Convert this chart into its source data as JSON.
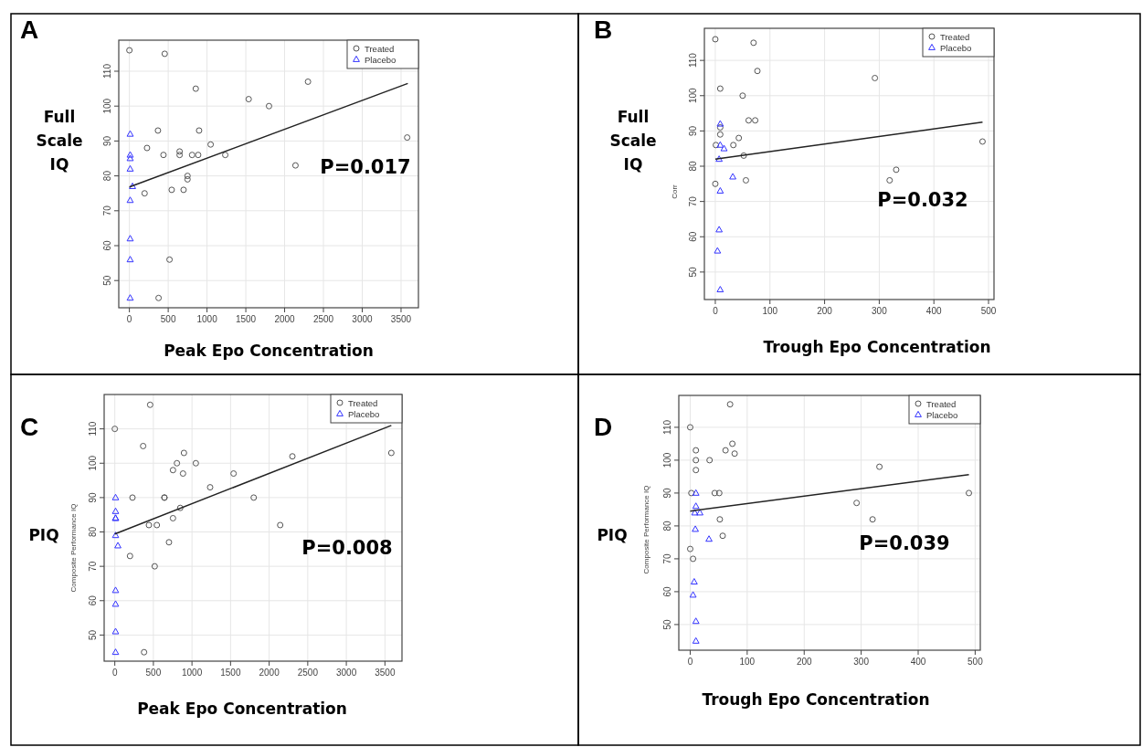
{
  "chart_data": [
    {
      "type": "scatter",
      "title": "A",
      "ylabel": "Full Scale IQ",
      "xlabel": "Peak Epo Concentration",
      "annotations": [
        "P=0.017"
      ],
      "xlim": [
        -137,
        3724
      ],
      "ylim": [
        42.2,
        118.9
      ],
      "xticks": [
        0,
        500,
        1000,
        1500,
        2000,
        2500,
        3000,
        3500
      ],
      "yticks": [
        50,
        60,
        70,
        80,
        90,
        100,
        110
      ],
      "grid": true,
      "legend": "top right",
      "series": [
        {
          "name": "Treated",
          "color": "#555555",
          "marker": "circle",
          "x": [
            0,
            455,
            368,
            227,
            439,
            647,
            647,
            808,
            886,
            855,
            898,
            1047,
            1235,
            749,
            749,
            196,
            545,
            698,
            517,
            376,
            1537,
            1799,
            2140,
            2301,
            3579
          ],
          "values": [
            116,
            115,
            93,
            88,
            86,
            87,
            86,
            86,
            86,
            105,
            93,
            89,
            86,
            80,
            79,
            75,
            76,
            76,
            56,
            45,
            102,
            100,
            83,
            107,
            91
          ]
        },
        {
          "name": "Placebo",
          "color": "#3333ff",
          "marker": "triangle",
          "x": [
            10,
            10,
            10,
            10,
            40,
            10,
            10,
            10,
            10
          ],
          "values": [
            92,
            86,
            85,
            82,
            77,
            73,
            62,
            56,
            45
          ]
        },
        {
          "type": "line",
          "color": "#222222",
          "x": [
            0,
            3587
          ],
          "values": [
            76.8,
            106.5
          ]
        }
      ]
    },
    {
      "type": "scatter",
      "title": "B",
      "ylabel": "Full Scale IQ",
      "xlabel": "Trough Epo Concentration",
      "annotations": [
        "P=0.032",
        "Corr"
      ],
      "xlim": [
        -20,
        510
      ],
      "ylim": [
        42.2,
        119.1
      ],
      "xticks": [
        0,
        100,
        200,
        300,
        400,
        500
      ],
      "yticks": [
        50,
        60,
        70,
        80,
        90,
        100,
        110
      ],
      "grid": true,
      "legend": "top right",
      "series": [
        {
          "name": "Treated",
          "color": "#555555",
          "marker": "circle",
          "x": [
            0,
            70,
            77,
            9,
            50,
            292,
            61,
            73,
            9,
            9,
            43,
            1,
            33,
            52,
            0,
            56,
            319,
            331,
            489
          ],
          "values": [
            116,
            115,
            107,
            102,
            100,
            105,
            93,
            93,
            91,
            89,
            88,
            86,
            86,
            83,
            75,
            76,
            76,
            79,
            87
          ]
        },
        {
          "name": "Placebo",
          "color": "#3333ff",
          "marker": "triangle",
          "x": [
            9,
            9,
            16,
            7,
            32,
            9,
            7,
            4,
            9
          ],
          "values": [
            92,
            86,
            85,
            82,
            77,
            73,
            62,
            56,
            45
          ]
        },
        {
          "type": "line",
          "color": "#222222",
          "x": [
            0,
            489
          ],
          "values": [
            82.0,
            92.5
          ]
        }
      ]
    },
    {
      "type": "scatter",
      "title": "C",
      "ylabel": "PIQ",
      "xlabel": "Peak Epo Concentration",
      "annotations": [
        "P=0.008",
        "Composite Performance IQ"
      ],
      "xlim": [
        -138,
        3721
      ],
      "ylim": [
        42.4,
        120
      ],
      "xticks": [
        0,
        500,
        1000,
        1500,
        2000,
        2500,
        3000,
        3500
      ],
      "yticks": [
        50,
        60,
        70,
        80,
        90,
        100,
        110
      ],
      "grid": true,
      "legend": "top right",
      "series": [
        {
          "name": "Treated",
          "color": "#555555",
          "marker": "circle",
          "x": [
            0,
            458,
            367,
            896,
            805,
            1050,
            754,
            884,
            1539,
            1235,
            229,
            643,
            643,
            1800,
            848,
            754,
            442,
            545,
            2143,
            702,
            197,
            517,
            379,
            2301,
            3583
          ],
          "values": [
            110,
            117,
            105,
            103,
            100,
            100,
            98,
            97,
            97,
            93,
            90,
            90,
            90,
            90,
            87,
            84,
            82,
            82,
            82,
            77,
            73,
            70,
            45,
            102,
            103
          ]
        },
        {
          "name": "Placebo",
          "color": "#3333ff",
          "marker": "triangle",
          "x": [
            10,
            10,
            10,
            10,
            10,
            40,
            10,
            10,
            10,
            10
          ],
          "values": [
            90,
            86,
            84,
            84,
            79,
            76,
            63,
            59,
            51,
            45
          ]
        },
        {
          "type": "line",
          "color": "#222222",
          "x": [
            0,
            3583
          ],
          "values": [
            79.4,
            111.0
          ]
        }
      ]
    },
    {
      "type": "scatter",
      "title": "D",
      "ylabel": "PIQ",
      "xlabel": "Trough Epo Concentration",
      "annotations": [
        "P=0.039",
        "Composite Performance IQ"
      ],
      "xlim": [
        -20,
        509
      ],
      "ylim": [
        42.2,
        119.7
      ],
      "xticks": [
        0,
        100,
        200,
        300,
        400,
        500
      ],
      "yticks": [
        50,
        60,
        70,
        80,
        90,
        100,
        110
      ],
      "grid": true,
      "legend": "top right",
      "series": [
        {
          "name": "Treated",
          "color": "#555555",
          "marker": "circle",
          "x": [
            70,
            0,
            74,
            10,
            62,
            78,
            10,
            34,
            10,
            332,
            2,
            43,
            51,
            292,
            52,
            320,
            57,
            0,
            5,
            489
          ],
          "values": [
            117,
            110,
            105,
            103,
            103,
            102,
            100,
            100,
            97,
            98,
            90,
            90,
            90,
            87,
            82,
            82,
            77,
            73,
            70,
            90
          ]
        },
        {
          "name": "Placebo",
          "color": "#3333ff",
          "marker": "triangle",
          "x": [
            10,
            10,
            8,
            17,
            9,
            33,
            7,
            5,
            10,
            10
          ],
          "values": [
            90,
            86,
            84,
            84,
            79,
            76,
            63,
            59,
            51,
            45
          ]
        },
        {
          "type": "line",
          "color": "#222222",
          "x": [
            0,
            489
          ],
          "values": [
            84.5,
            95.6
          ]
        }
      ]
    }
  ]
}
